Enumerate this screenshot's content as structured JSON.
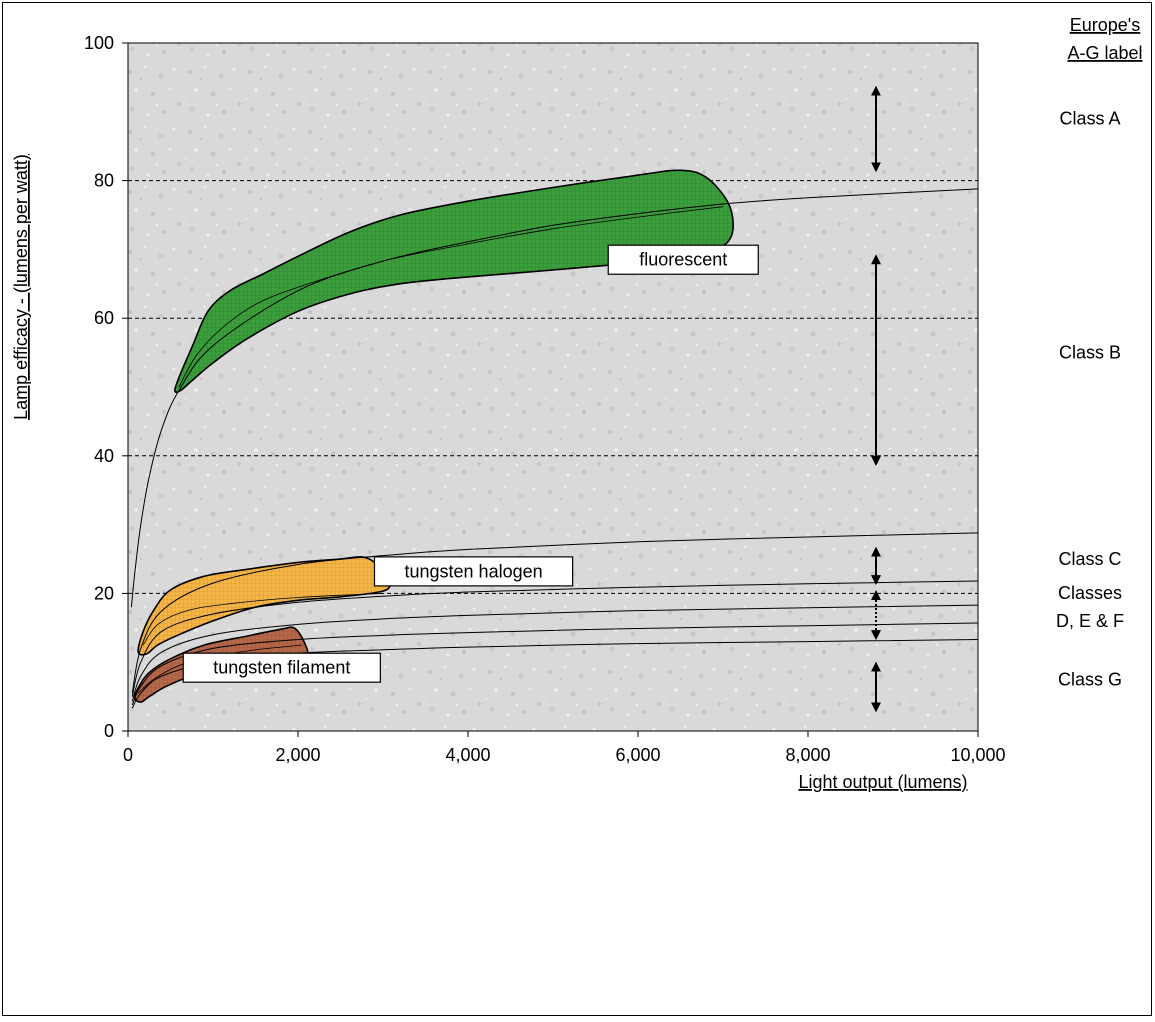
{
  "chart_data": {
    "type": "area",
    "title": "",
    "xlabel": "Light output (lumens)",
    "ylabel": "Lamp efficacy - (lumens per watt)",
    "xlim": [
      0,
      10000
    ],
    "ylim": [
      0,
      100
    ],
    "x_ticks": [
      "0",
      "2,000",
      "4,000",
      "6,000",
      "8,000",
      "10,000"
    ],
    "y_ticks": [
      "0",
      "20",
      "40",
      "60",
      "80",
      "100"
    ],
    "gridlines_y": [
      20,
      40,
      60,
      80
    ],
    "legend_header": [
      "Europe's",
      "A-G label"
    ],
    "class_labels": [
      {
        "lines": [
          "Class A"
        ],
        "y_mid": 89
      },
      {
        "lines": [
          "Class B"
        ],
        "y_mid": 55
      },
      {
        "lines": [
          "Class C"
        ],
        "y_mid": 25
      },
      {
        "lines": [
          "Classes",
          "D, E & F"
        ],
        "y_mid": 18
      },
      {
        "lines": [
          "Class G"
        ],
        "y_mid": 7.5
      }
    ],
    "class_arrows": [
      {
        "x": 8800,
        "from": 93.5,
        "to": 81.5,
        "style": "solid"
      },
      {
        "x": 8800,
        "from": 69,
        "to": 38.8,
        "style": "solid"
      },
      {
        "x": 8800,
        "from": 26.5,
        "to": 21.5,
        "style": "solid"
      },
      {
        "x": 8800,
        "from": 20.2,
        "to": 13.5,
        "style": "dotted"
      },
      {
        "x": 8800,
        "from": 9.8,
        "to": 3.0,
        "style": "solid"
      }
    ],
    "class_boundary_curves": [
      {
        "name": "A/B",
        "points": [
          [
            40,
            18
          ],
          [
            80,
            23
          ],
          [
            150,
            30
          ],
          [
            250,
            37
          ],
          [
            400,
            44
          ],
          [
            600,
            49.5
          ],
          [
            1000,
            56
          ],
          [
            2000,
            64
          ],
          [
            3000,
            68.3
          ],
          [
            4000,
            71.1
          ],
          [
            5000,
            73.5
          ],
          [
            6000,
            75.2
          ],
          [
            7000,
            76.6
          ],
          [
            8000,
            77.5
          ],
          [
            10000,
            78.8
          ]
        ]
      },
      {
        "name": "B/C",
        "points": [
          [
            50,
            5.5
          ],
          [
            150,
            12
          ],
          [
            400,
            17.5
          ],
          [
            1000,
            21.5
          ],
          [
            2000,
            24.2
          ],
          [
            3000,
            25.5
          ],
          [
            4000,
            26.4
          ],
          [
            6000,
            27.5
          ],
          [
            8000,
            28.2
          ],
          [
            10000,
            28.8
          ]
        ]
      },
      {
        "name": "C/D",
        "points": [
          [
            50,
            5.0
          ],
          [
            150,
            10
          ],
          [
            400,
            14.5
          ],
          [
            1000,
            17
          ],
          [
            2000,
            18.7
          ],
          [
            3000,
            19.6
          ],
          [
            4000,
            20.2
          ],
          [
            6000,
            20.9
          ],
          [
            8000,
            21.4
          ],
          [
            10000,
            21.8
          ]
        ]
      },
      {
        "name": "D/E",
        "points": [
          [
            50,
            4.3
          ],
          [
            150,
            8
          ],
          [
            400,
            11.5
          ],
          [
            1000,
            14
          ],
          [
            2000,
            15.5
          ],
          [
            3000,
            16.3
          ],
          [
            4000,
            16.8
          ],
          [
            6000,
            17.5
          ],
          [
            8000,
            17.9
          ],
          [
            10000,
            18.3
          ]
        ]
      },
      {
        "name": "E/F",
        "points": [
          [
            50,
            3.8
          ],
          [
            150,
            6.5
          ],
          [
            400,
            9.5
          ],
          [
            1000,
            12
          ],
          [
            2000,
            13.3
          ],
          [
            3000,
            13.9
          ],
          [
            4000,
            14.3
          ],
          [
            6000,
            14.9
          ],
          [
            8000,
            15.3
          ],
          [
            10000,
            15.7
          ]
        ]
      },
      {
        "name": "F/G",
        "points": [
          [
            50,
            3.3
          ],
          [
            150,
            5.5
          ],
          [
            400,
            8
          ],
          [
            1000,
            10
          ],
          [
            2000,
            11.3
          ],
          [
            3000,
            11.8
          ],
          [
            4000,
            12.2
          ],
          [
            6000,
            12.7
          ],
          [
            8000,
            13.0
          ],
          [
            10000,
            13.3
          ]
        ]
      }
    ],
    "regions": [
      {
        "label": "fluorescent",
        "fill": "#3c9d3c",
        "label_anchor": [
          6300,
          68.5
        ],
        "outline": [
          [
            550,
            49.5
          ],
          [
            620,
            52
          ],
          [
            760,
            56
          ],
          [
            940,
            61
          ],
          [
            1200,
            64
          ],
          [
            1600,
            66.5
          ],
          [
            2000,
            69
          ],
          [
            2600,
            72.5
          ],
          [
            3200,
            75
          ],
          [
            4000,
            77
          ],
          [
            5000,
            79
          ],
          [
            6000,
            80.8
          ],
          [
            6500,
            81.5
          ],
          [
            6800,
            80.5
          ],
          [
            7050,
            77
          ],
          [
            7120,
            73.5
          ],
          [
            7050,
            71
          ],
          [
            6800,
            69.5
          ],
          [
            6300,
            68.5
          ],
          [
            5000,
            67
          ],
          [
            4000,
            66
          ],
          [
            3200,
            65
          ],
          [
            2600,
            63.5
          ],
          [
            2000,
            61
          ],
          [
            1400,
            57
          ],
          [
            1000,
            53.5
          ],
          [
            760,
            51
          ],
          [
            620,
            49.5
          ]
        ],
        "center_line": [
          [
            600,
            50
          ],
          [
            800,
            54.5
          ],
          [
            1100,
            58.5
          ],
          [
            1500,
            62
          ],
          [
            2000,
            64.5
          ],
          [
            3000,
            68.3
          ],
          [
            4000,
            70.8
          ],
          [
            5000,
            73
          ],
          [
            6000,
            74.7
          ],
          [
            7000,
            76.2
          ]
        ]
      },
      {
        "label": "tungsten halogen",
        "fill": "#f5b547",
        "label_anchor": [
          2950,
          23.2
        ],
        "outline": [
          [
            120,
            11.5
          ],
          [
            180,
            14.5
          ],
          [
            300,
            17.5
          ],
          [
            500,
            20.5
          ],
          [
            900,
            22.5
          ],
          [
            1400,
            23.5
          ],
          [
            2000,
            24.5
          ],
          [
            2500,
            25
          ],
          [
            2750,
            25.3
          ],
          [
            2900,
            24.5
          ],
          [
            3050,
            22.5
          ],
          [
            3080,
            21
          ],
          [
            2950,
            20.2
          ],
          [
            2500,
            19.5
          ],
          [
            2000,
            19
          ],
          [
            1500,
            18
          ],
          [
            1000,
            16
          ],
          [
            600,
            14
          ],
          [
            350,
            12.5
          ],
          [
            220,
            11.2
          ]
        ],
        "center_line": [
          [
            180,
            12.5
          ],
          [
            350,
            15.5
          ],
          [
            700,
            17.5
          ],
          [
            1200,
            18.5
          ],
          [
            2000,
            19.4
          ],
          [
            3000,
            20
          ]
        ]
      },
      {
        "label": "tungsten filament",
        "fill": "#b5674a",
        "label_anchor": [
          1650,
          9.2
        ],
        "outline": [
          [
            80,
            4.8
          ],
          [
            130,
            6.5
          ],
          [
            250,
            8.5
          ],
          [
            500,
            10.5
          ],
          [
            900,
            12.5
          ],
          [
            1400,
            13.8
          ],
          [
            1800,
            14.8
          ],
          [
            1950,
            15
          ],
          [
            2050,
            13.5
          ],
          [
            2120,
            11
          ],
          [
            2000,
            10.8
          ],
          [
            1700,
            10.2
          ],
          [
            1200,
            9.3
          ],
          [
            800,
            8.2
          ],
          [
            450,
            6.5
          ],
          [
            250,
            5
          ],
          [
            150,
            4.2
          ]
        ],
        "center_line": [
          [
            120,
            5.5
          ],
          [
            300,
            7.5
          ],
          [
            600,
            9.5
          ],
          [
            1000,
            10.8
          ],
          [
            1500,
            11.8
          ],
          [
            2050,
            12.5
          ]
        ]
      }
    ]
  }
}
